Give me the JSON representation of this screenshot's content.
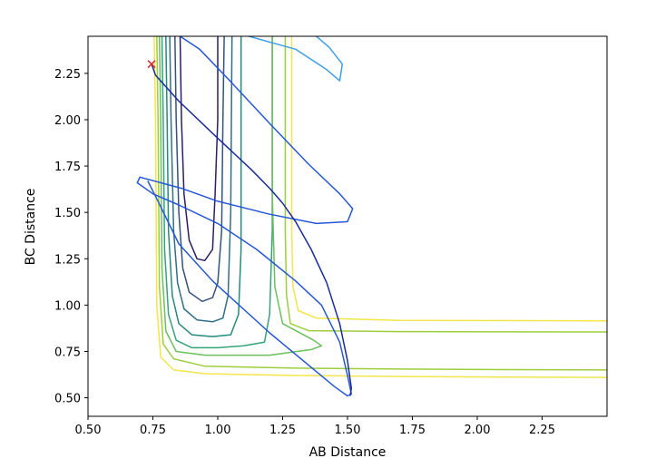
{
  "chart_data": {
    "type": "line",
    "title": "",
    "xlabel": "AB Distance",
    "ylabel": "BC Distance",
    "xlim": [
      0.5,
      2.5
    ],
    "ylim": [
      0.4,
      2.45
    ],
    "grid": false,
    "x_ticks": [
      0.5,
      0.75,
      1.0,
      1.25,
      1.5,
      1.75,
      2.0,
      2.25
    ],
    "x_tick_labels": [
      "0.50",
      "0.75",
      "1.00",
      "1.25",
      "1.50",
      "1.75",
      "2.00",
      "2.25"
    ],
    "y_ticks": [
      0.5,
      0.75,
      1.0,
      1.25,
      1.5,
      1.75,
      2.0,
      2.25
    ],
    "y_tick_labels": [
      "0.50",
      "0.75",
      "1.00",
      "1.25",
      "1.50",
      "1.75",
      "2.00",
      "2.25"
    ],
    "series": [
      {
        "color": "#2a1e66",
        "values": [
          [
            0.855,
            2.45
          ],
          [
            0.86,
            2.0
          ],
          [
            0.87,
            1.6
          ],
          [
            0.89,
            1.35
          ],
          [
            0.92,
            1.25
          ],
          [
            0.95,
            1.24
          ],
          [
            0.98,
            1.3
          ],
          [
            0.99,
            1.6
          ],
          [
            1.0,
            2.0
          ],
          [
            1.0,
            2.45
          ]
        ]
      },
      {
        "color": "#33537a",
        "values": [
          [
            0.835,
            2.45
          ],
          [
            0.84,
            2.0
          ],
          [
            0.85,
            1.5
          ],
          [
            0.865,
            1.2
          ],
          [
            0.89,
            1.07
          ],
          [
            0.94,
            1.02
          ],
          [
            0.98,
            1.04
          ],
          [
            1.0,
            1.12
          ],
          [
            1.015,
            1.4
          ],
          [
            1.02,
            2.0
          ],
          [
            1.025,
            2.45
          ]
        ]
      },
      {
        "color": "#2f6f87",
        "values": [
          [
            0.815,
            2.45
          ],
          [
            0.82,
            2.0
          ],
          [
            0.83,
            1.4
          ],
          [
            0.845,
            1.12
          ],
          [
            0.87,
            0.98
          ],
          [
            0.92,
            0.92
          ],
          [
            0.98,
            0.91
          ],
          [
            1.02,
            0.93
          ],
          [
            1.04,
            1.05
          ],
          [
            1.05,
            1.5
          ],
          [
            1.055,
            2.45
          ]
        ]
      },
      {
        "color": "#27897f",
        "values": [
          [
            0.8,
            2.45
          ],
          [
            0.805,
            2.0
          ],
          [
            0.81,
            1.4
          ],
          [
            0.825,
            1.05
          ],
          [
            0.85,
            0.9
          ],
          [
            0.9,
            0.84
          ],
          [
            0.98,
            0.83
          ],
          [
            1.05,
            0.84
          ],
          [
            1.08,
            0.95
          ],
          [
            1.09,
            1.3
          ],
          [
            1.09,
            2.0
          ],
          [
            1.09,
            2.45
          ]
        ]
      },
      {
        "color": "#35a37a",
        "values": [
          [
            0.785,
            2.45
          ],
          [
            0.79,
            2.0
          ],
          [
            0.795,
            1.3
          ],
          [
            0.81,
            0.95
          ],
          [
            0.84,
            0.81
          ],
          [
            0.9,
            0.77
          ],
          [
            1.0,
            0.77
          ],
          [
            1.1,
            0.78
          ],
          [
            1.18,
            0.8
          ],
          [
            1.2,
            0.95
          ],
          [
            1.21,
            1.4
          ],
          [
            1.21,
            2.45
          ]
        ]
      },
      {
        "color": "#6cbf5e",
        "values": [
          [
            0.775,
            2.45
          ],
          [
            0.78,
            2.0
          ],
          [
            0.785,
            1.2
          ],
          [
            0.8,
            0.86
          ],
          [
            0.84,
            0.75
          ],
          [
            0.95,
            0.73
          ],
          [
            1.2,
            0.73
          ],
          [
            1.36,
            0.76
          ],
          [
            1.4,
            0.78
          ],
          [
            1.37,
            0.81
          ],
          [
            1.25,
            0.9
          ],
          [
            1.22,
            1.1
          ],
          [
            1.21,
            1.6
          ],
          [
            1.21,
            2.45
          ]
        ]
      },
      {
        "color": "#9ccf3c",
        "values": [
          [
            0.765,
            2.45
          ],
          [
            0.77,
            2.0
          ],
          [
            0.775,
            1.1
          ],
          [
            0.79,
            0.79
          ],
          [
            0.83,
            0.71
          ],
          [
            0.95,
            0.67
          ],
          [
            1.3,
            0.66
          ],
          [
            1.7,
            0.655
          ],
          [
            2.1,
            0.652
          ],
          [
            2.5,
            0.65
          ]
        ]
      },
      {
        "color": "#9ccf3c",
        "values": [
          [
            2.5,
            0.855
          ],
          [
            1.7,
            0.857
          ],
          [
            1.35,
            0.862
          ],
          [
            1.28,
            0.9
          ],
          [
            1.265,
            1.05
          ],
          [
            1.26,
            1.4
          ],
          [
            1.26,
            2.0
          ],
          [
            1.26,
            2.45
          ]
        ]
      },
      {
        "color": "#f3e54a",
        "values": [
          [
            0.755,
            2.45
          ],
          [
            0.76,
            2.0
          ],
          [
            0.765,
            1.0
          ],
          [
            0.78,
            0.72
          ],
          [
            0.83,
            0.65
          ],
          [
            0.95,
            0.63
          ],
          [
            1.3,
            0.62
          ],
          [
            1.7,
            0.615
          ],
          [
            2.1,
            0.612
          ],
          [
            2.5,
            0.61
          ]
        ]
      },
      {
        "color": "#f3e54a",
        "values": [
          [
            2.5,
            0.915
          ],
          [
            1.7,
            0.917
          ],
          [
            1.38,
            0.93
          ],
          [
            1.31,
            0.97
          ],
          [
            1.29,
            1.1
          ],
          [
            1.285,
            1.4
          ],
          [
            1.285,
            2.0
          ],
          [
            1.285,
            2.45
          ]
        ]
      },
      {
        "color": "#3f9ee8",
        "values": [
          [
            1.12,
            2.45
          ],
          [
            1.3,
            2.38
          ],
          [
            1.42,
            2.27
          ],
          [
            1.47,
            2.21
          ],
          [
            1.48,
            2.3
          ],
          [
            1.43,
            2.39
          ],
          [
            1.38,
            2.45
          ]
        ]
      },
      {
        "color": "#2557d6",
        "values": [
          [
            0.855,
            2.45
          ],
          [
            0.93,
            2.38
          ],
          [
            1.04,
            2.22
          ],
          [
            1.2,
            1.98
          ],
          [
            1.35,
            1.76
          ],
          [
            1.47,
            1.6
          ],
          [
            1.52,
            1.52
          ],
          [
            1.5,
            1.45
          ],
          [
            1.38,
            1.44
          ],
          [
            1.2,
            1.49
          ],
          [
            1.0,
            1.56
          ],
          [
            0.86,
            1.63
          ],
          [
            0.7,
            1.69
          ],
          [
            0.69,
            1.66
          ],
          [
            0.75,
            1.6
          ],
          [
            0.85,
            1.54
          ],
          [
            1.0,
            1.44
          ],
          [
            1.15,
            1.3
          ],
          [
            1.3,
            1.13
          ],
          [
            1.4,
            1.0
          ],
          [
            1.47,
            0.8
          ],
          [
            1.5,
            0.62
          ],
          [
            1.515,
            0.52
          ],
          [
            1.5,
            0.51
          ],
          [
            1.45,
            0.56
          ],
          [
            1.2,
            0.85
          ],
          [
            0.98,
            1.13
          ],
          [
            0.85,
            1.33
          ],
          [
            0.77,
            1.56
          ],
          [
            0.73,
            1.67
          ]
        ]
      },
      {
        "color": "#1a2b9a",
        "values": [
          [
            0.745,
            2.3
          ],
          [
            0.76,
            2.24
          ],
          [
            0.85,
            2.1
          ],
          [
            1.0,
            1.9
          ],
          [
            1.13,
            1.73
          ],
          [
            1.2,
            1.63
          ],
          [
            1.25,
            1.55
          ],
          [
            1.3,
            1.45
          ],
          [
            1.36,
            1.3
          ],
          [
            1.42,
            1.12
          ],
          [
            1.47,
            0.9
          ],
          [
            1.5,
            0.7
          ],
          [
            1.515,
            0.55
          ],
          [
            1.51,
            0.51
          ]
        ]
      }
    ],
    "markers": [
      {
        "x": 0.745,
        "y": 2.3,
        "symbol": "x",
        "color": "#d62728"
      }
    ]
  }
}
